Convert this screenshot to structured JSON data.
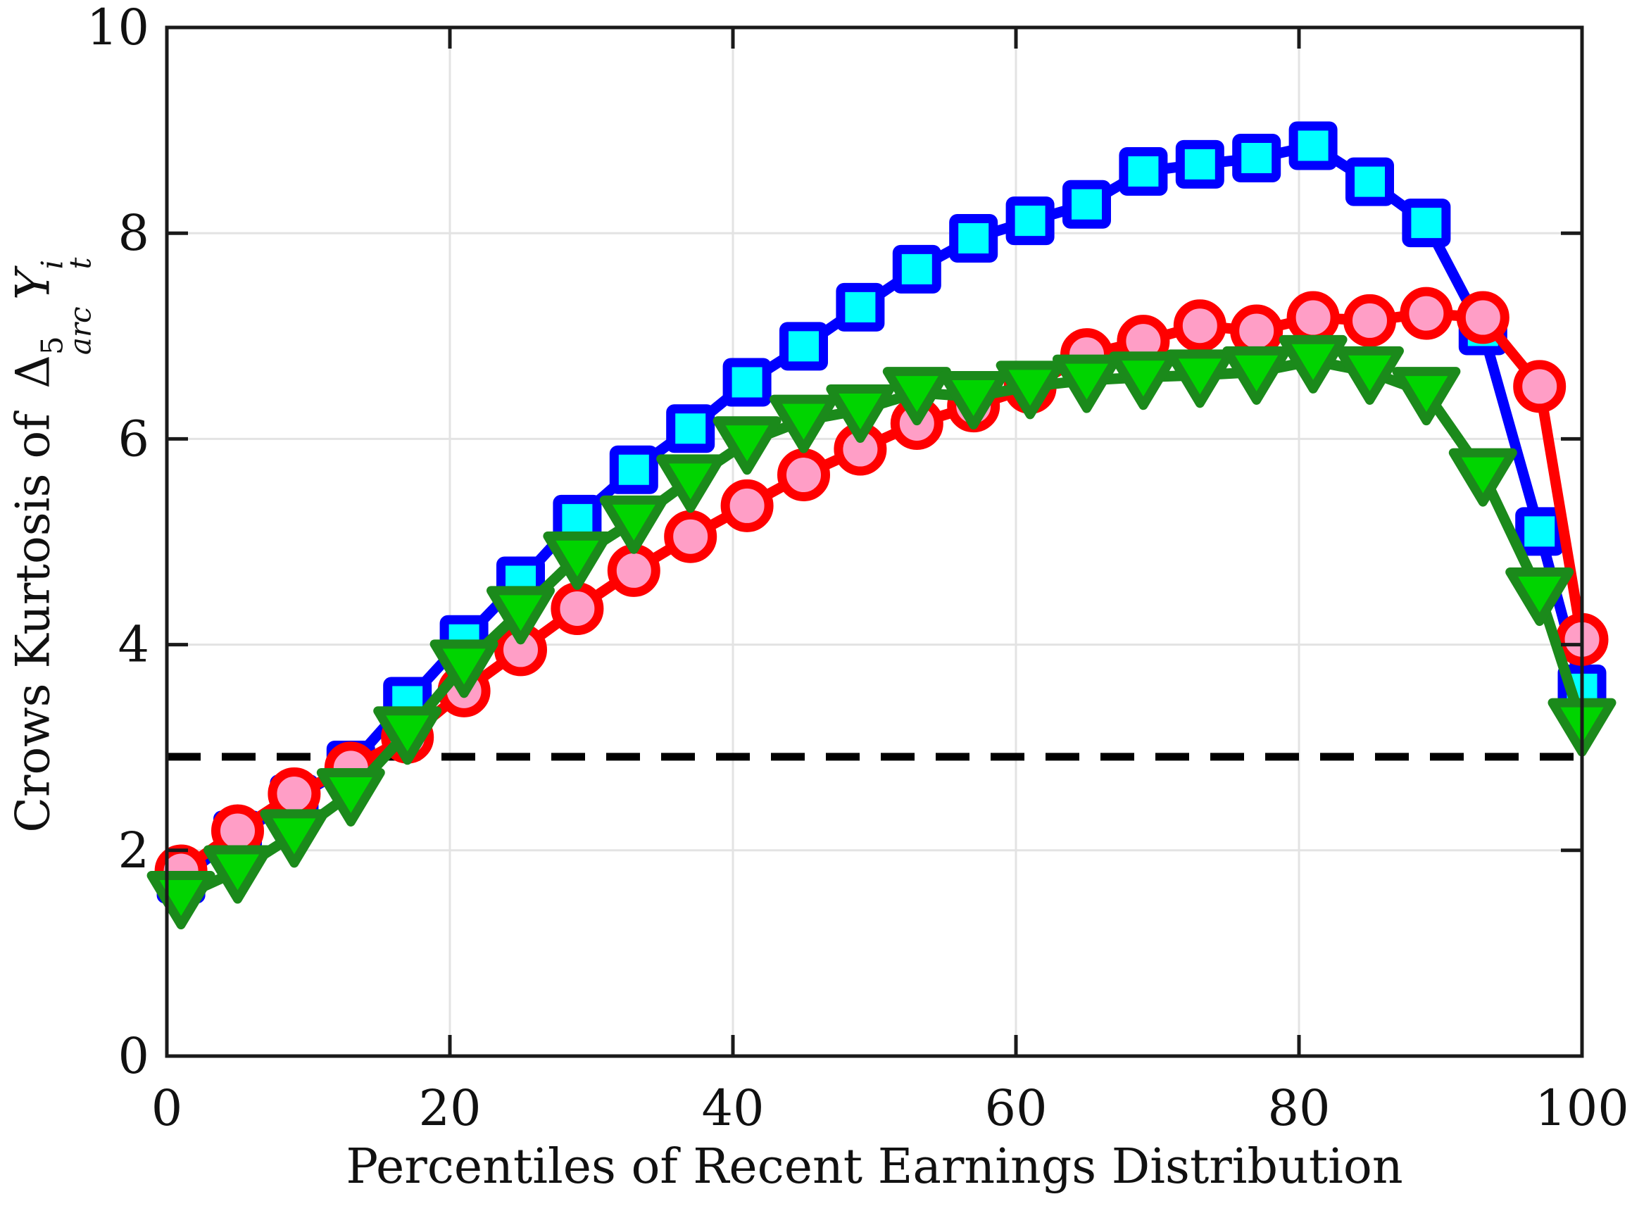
{
  "figure": {
    "background": "#FFFFFF"
  },
  "chart_data": {
    "type": "line",
    "title": "",
    "xlabel": "Percentiles of Recent Earnings Distribution",
    "ylabel": {
      "prefix": "Crows Kurtosis of ",
      "delta": "Δ",
      "delta_sup": "5",
      "delta_sub": "arc",
      "y_symbol": "Y",
      "y_sup": "i",
      "y_sub": "t"
    },
    "xlim": [
      0,
      100
    ],
    "ylim": [
      0,
      10
    ],
    "xticks": [
      0,
      20,
      40,
      60,
      80,
      100
    ],
    "yticks": [
      0,
      2,
      4,
      6,
      8,
      10
    ],
    "grid": true,
    "grid_color": "#E3E3E3",
    "axis_color": "#1A1A1A",
    "text_color": "#111111",
    "reference_line": {
      "value": 2.91,
      "style": "dashed",
      "color": "#000000"
    },
    "x": [
      1,
      5,
      9,
      13,
      17,
      21,
      25,
      29,
      33,
      37,
      41,
      45,
      49,
      53,
      57,
      61,
      65,
      69,
      73,
      77,
      81,
      85,
      89,
      93,
      97,
      100
    ],
    "series": [
      {
        "name": "blue-squares",
        "marker": "square",
        "line_color": "#0000FF",
        "marker_fill": "#00FFFF",
        "values": [
          1.72,
          2.15,
          2.5,
          2.83,
          3.45,
          4.05,
          4.62,
          5.22,
          5.7,
          6.1,
          6.55,
          6.9,
          7.28,
          7.65,
          7.95,
          8.12,
          8.28,
          8.6,
          8.67,
          8.73,
          8.85,
          8.5,
          8.1,
          7.05,
          5.1,
          3.57
        ]
      },
      {
        "name": "red-circles",
        "marker": "circle",
        "line_color": "#FF0000",
        "marker_fill": "#FF9EC6",
        "values": [
          1.8,
          2.19,
          2.55,
          2.8,
          3.1,
          3.55,
          3.95,
          4.35,
          4.72,
          5.05,
          5.35,
          5.65,
          5.9,
          6.15,
          6.32,
          6.5,
          6.82,
          6.95,
          7.1,
          7.05,
          7.18,
          7.15,
          7.22,
          7.18,
          6.51,
          4.05
        ]
      },
      {
        "name": "green-triangles",
        "marker": "triangle-down",
        "line_color": "#1B8A1B",
        "marker_fill": "#00D400",
        "values": [
          1.55,
          1.8,
          2.15,
          2.55,
          3.15,
          3.8,
          4.32,
          4.85,
          5.2,
          5.6,
          5.97,
          6.18,
          6.28,
          6.45,
          6.41,
          6.51,
          6.57,
          6.6,
          6.62,
          6.65,
          6.76,
          6.65,
          6.45,
          5.66,
          4.5,
          3.23
        ]
      }
    ],
    "legend": null
  }
}
